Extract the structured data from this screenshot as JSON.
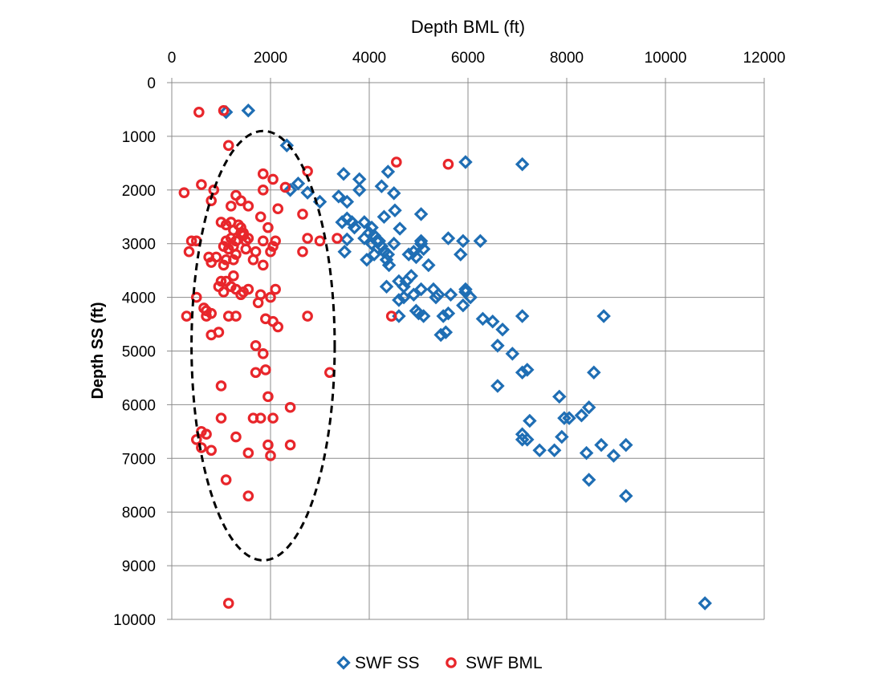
{
  "chart_data": {
    "type": "scatter",
    "title": "",
    "xlabel": "Depth BML (ft)",
    "ylabel": "Depth SS (ft)",
    "xlim": [
      0,
      12000
    ],
    "ylim": [
      0,
      10000
    ],
    "y_inverted": true,
    "x_axis_position": "top",
    "x_ticks": [
      "0",
      "2000",
      "4000",
      "6000",
      "8000",
      "10000",
      "12000"
    ],
    "y_ticks": [
      "0",
      "1000",
      "2000",
      "3000",
      "4000",
      "5000",
      "6000",
      "7000",
      "8000",
      "9000",
      "10000"
    ],
    "x_tick_values": [
      0,
      2000,
      4000,
      6000,
      8000,
      10000,
      12000
    ],
    "y_tick_values": [
      0,
      1000,
      2000,
      3000,
      4000,
      5000,
      6000,
      7000,
      8000,
      9000,
      10000
    ],
    "grid": true,
    "legend_position": "bottom-center",
    "annotation": {
      "shape": "dashed-ellipse",
      "center": [
        1850,
        4900
      ],
      "x_half_width": 1450,
      "y_half_height": 4000
    },
    "series": [
      {
        "name": "SWF SS",
        "marker": "diamond",
        "color": "#1f6eb4",
        "points": [
          [
            1100,
            550
          ],
          [
            1550,
            520
          ],
          [
            2330,
            1170
          ],
          [
            3480,
            1700
          ],
          [
            3800,
            1800
          ],
          [
            4380,
            1660
          ],
          [
            2560,
            1880
          ],
          [
            2400,
            2000
          ],
          [
            2750,
            2050
          ],
          [
            3000,
            2220
          ],
          [
            3380,
            2120
          ],
          [
            3550,
            2220
          ],
          [
            3800,
            2000
          ],
          [
            4250,
            1930
          ],
          [
            4500,
            2060
          ],
          [
            4520,
            2380
          ],
          [
            4620,
            2720
          ],
          [
            5050,
            2450
          ],
          [
            5950,
            1480
          ],
          [
            7100,
            1520
          ],
          [
            3450,
            2600
          ],
          [
            3550,
            2530
          ],
          [
            3650,
            2600
          ],
          [
            3700,
            2700
          ],
          [
            3900,
            2600
          ],
          [
            4050,
            2700
          ],
          [
            4300,
            2500
          ],
          [
            3550,
            2920
          ],
          [
            3500,
            3150
          ],
          [
            3900,
            2900
          ],
          [
            4000,
            2800
          ],
          [
            4050,
            3000
          ],
          [
            4100,
            2850
          ],
          [
            4150,
            2950
          ],
          [
            4200,
            2950
          ],
          [
            4250,
            3050
          ],
          [
            4300,
            3150
          ],
          [
            4380,
            3200
          ],
          [
            4500,
            3000
          ],
          [
            3950,
            3300
          ],
          [
            4100,
            3200
          ],
          [
            4350,
            3300
          ],
          [
            4400,
            3400
          ],
          [
            4800,
            3200
          ],
          [
            4900,
            3150
          ],
          [
            4950,
            3250
          ],
          [
            5050,
            3000
          ],
          [
            5100,
            3100
          ],
          [
            5050,
            2950
          ],
          [
            5600,
            2900
          ],
          [
            5900,
            2950
          ],
          [
            5850,
            3200
          ],
          [
            6250,
            2950
          ],
          [
            4350,
            3800
          ],
          [
            4600,
            3700
          ],
          [
            4700,
            3800
          ],
          [
            4750,
            3700
          ],
          [
            4850,
            3600
          ],
          [
            4600,
            4050
          ],
          [
            4700,
            4000
          ],
          [
            4900,
            3950
          ],
          [
            5050,
            3850
          ],
          [
            5200,
            3400
          ],
          [
            5300,
            3850
          ],
          [
            5400,
            3950
          ],
          [
            5350,
            4000
          ],
          [
            4950,
            4250
          ],
          [
            5000,
            4300
          ],
          [
            5100,
            4350
          ],
          [
            4600,
            4350
          ],
          [
            5500,
            4350
          ],
          [
            5600,
            4300
          ],
          [
            5650,
            3950
          ],
          [
            5950,
            3900
          ],
          [
            5950,
            3850
          ],
          [
            6050,
            4000
          ],
          [
            5900,
            4150
          ],
          [
            5450,
            4700
          ],
          [
            5550,
            4650
          ],
          [
            6300,
            4400
          ],
          [
            6500,
            4450
          ],
          [
            6700,
            4600
          ],
          [
            7100,
            4350
          ],
          [
            6600,
            4900
          ],
          [
            6900,
            5050
          ],
          [
            7100,
            5400
          ],
          [
            7200,
            5350
          ],
          [
            6600,
            5650
          ],
          [
            8750,
            4350
          ],
          [
            8550,
            5400
          ],
          [
            7850,
            5850
          ],
          [
            7950,
            6250
          ],
          [
            8050,
            6250
          ],
          [
            8300,
            6200
          ],
          [
            8450,
            6050
          ],
          [
            7250,
            6300
          ],
          [
            7100,
            6550
          ],
          [
            7200,
            6650
          ],
          [
            7100,
            6650
          ],
          [
            7450,
            6850
          ],
          [
            7750,
            6850
          ],
          [
            7900,
            6600
          ],
          [
            8400,
            6900
          ],
          [
            8700,
            6750
          ],
          [
            8950,
            6950
          ],
          [
            9200,
            6750
          ],
          [
            8450,
            7400
          ],
          [
            9200,
            7700
          ],
          [
            10800,
            9700
          ]
        ]
      },
      {
        "name": "SWF BML",
        "marker": "circle",
        "color": "#e8262b",
        "points": [
          [
            550,
            550
          ],
          [
            1050,
            520
          ],
          [
            1150,
            1170
          ],
          [
            250,
            2050
          ],
          [
            600,
            1900
          ],
          [
            850,
            2000
          ],
          [
            800,
            2200
          ],
          [
            1300,
            2100
          ],
          [
            1400,
            2200
          ],
          [
            1550,
            2300
          ],
          [
            1200,
            2300
          ],
          [
            1850,
            1700
          ],
          [
            2050,
            1800
          ],
          [
            1850,
            2000
          ],
          [
            2300,
            1950
          ],
          [
            2150,
            2350
          ],
          [
            2750,
            1650
          ],
          [
            2650,
            2450
          ],
          [
            1800,
            2500
          ],
          [
            1950,
            2700
          ],
          [
            1000,
            2600
          ],
          [
            1100,
            2650
          ],
          [
            1200,
            2600
          ],
          [
            1250,
            2750
          ],
          [
            1350,
            2650
          ],
          [
            1400,
            2800
          ],
          [
            1450,
            2850
          ],
          [
            1300,
            2950
          ],
          [
            1200,
            2900
          ],
          [
            1100,
            2950
          ],
          [
            1050,
            3050
          ],
          [
            1150,
            3100
          ],
          [
            1250,
            3050
          ],
          [
            1500,
            2950
          ],
          [
            1400,
            2700
          ],
          [
            1450,
            2800
          ],
          [
            1550,
            2900
          ],
          [
            1850,
            2950
          ],
          [
            2100,
            2950
          ],
          [
            2050,
            3050
          ],
          [
            2000,
            3150
          ],
          [
            2750,
            2900
          ],
          [
            3000,
            2950
          ],
          [
            3350,
            2900
          ],
          [
            2650,
            3150
          ],
          [
            500,
            2950
          ],
          [
            400,
            2950
          ],
          [
            350,
            3150
          ],
          [
            750,
            3250
          ],
          [
            900,
            3250
          ],
          [
            800,
            3350
          ],
          [
            1100,
            3300
          ],
          [
            1050,
            3400
          ],
          [
            1250,
            3300
          ],
          [
            1300,
            3200
          ],
          [
            1500,
            3100
          ],
          [
            1700,
            3150
          ],
          [
            1650,
            3300
          ],
          [
            1850,
            3400
          ],
          [
            1250,
            3600
          ],
          [
            1000,
            3700
          ],
          [
            1100,
            3700
          ],
          [
            950,
            3800
          ],
          [
            1050,
            3900
          ],
          [
            1200,
            3800
          ],
          [
            1300,
            3850
          ],
          [
            1400,
            3950
          ],
          [
            1450,
            3900
          ],
          [
            1550,
            3850
          ],
          [
            1800,
            3950
          ],
          [
            1750,
            4100
          ],
          [
            2000,
            4000
          ],
          [
            2100,
            3850
          ],
          [
            500,
            4000
          ],
          [
            650,
            4200
          ],
          [
            700,
            4250
          ],
          [
            700,
            4350
          ],
          [
            800,
            4300
          ],
          [
            300,
            4350
          ],
          [
            1150,
            4350
          ],
          [
            1300,
            4350
          ],
          [
            1900,
            4400
          ],
          [
            2050,
            4450
          ],
          [
            2150,
            4550
          ],
          [
            2750,
            4350
          ],
          [
            4450,
            4350
          ],
          [
            4550,
            1480
          ],
          [
            5600,
            1520
          ],
          [
            800,
            4700
          ],
          [
            950,
            4650
          ],
          [
            1700,
            4900
          ],
          [
            1850,
            5050
          ],
          [
            1900,
            5350
          ],
          [
            1700,
            5400
          ],
          [
            3200,
            5400
          ],
          [
            1000,
            5650
          ],
          [
            1950,
            5850
          ],
          [
            2400,
            6050
          ],
          [
            1000,
            6250
          ],
          [
            1650,
            6250
          ],
          [
            1800,
            6250
          ],
          [
            2050,
            6250
          ],
          [
            600,
            6500
          ],
          [
            700,
            6550
          ],
          [
            500,
            6650
          ],
          [
            600,
            6800
          ],
          [
            800,
            6850
          ],
          [
            1300,
            6600
          ],
          [
            1950,
            6750
          ],
          [
            2400,
            6750
          ],
          [
            1550,
            6900
          ],
          [
            2000,
            6950
          ],
          [
            1100,
            7400
          ],
          [
            1550,
            7700
          ],
          [
            1150,
            9700
          ]
        ]
      }
    ]
  }
}
